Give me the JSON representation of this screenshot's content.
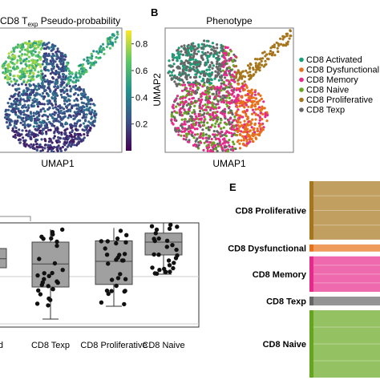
{
  "panel_a": {
    "title": "CD8 Tₑₓₚ Pseudo-probability",
    "title_prefix": "CD8 T",
    "title_sub": "exp",
    "title_suffix": " Pseudo-probability",
    "xlabel": "UMAP1",
    "colorbar_ticks": [
      "0.8",
      "0.6",
      "0.4",
      "0.2"
    ],
    "colormap": "viridis"
  },
  "panel_b": {
    "letter": "B",
    "title": "Phenotype",
    "xlabel": "UMAP1",
    "ylabel": "UMAP2",
    "legend": [
      {
        "label": "CD8 Activated",
        "color": "#1a9e77"
      },
      {
        "label": "CD8 Dysfunctional",
        "color": "#e8701a"
      },
      {
        "label": "CD8 Memory",
        "color": "#e7298a"
      },
      {
        "label": "CD8 Naive",
        "color": "#66a61e"
      },
      {
        "label": "CD8 Proliferative",
        "color": "#a6761d"
      },
      {
        "label": "CD8 Texp",
        "color": "#666666"
      }
    ]
  },
  "panel_d": {
    "categories": [
      "d",
      "CD8 Texp",
      "CD8 Proliferative",
      "CD8 Naive"
    ]
  },
  "panel_e": {
    "letter": "E",
    "labels": [
      "CD8 Proliferative",
      "CD8 Dysfunctional",
      "CD8 Memory",
      "CD8 Texp",
      "CD8 Naive"
    ],
    "colors": [
      "#a6761d",
      "#e8701a",
      "#e7298a",
      "#666666",
      "#66a61e"
    ]
  },
  "chart_data": [
    {
      "type": "scatter",
      "title": "CD8 Texp Pseudo-probability",
      "xlabel": "UMAP1",
      "ylabel": "",
      "colorbar": {
        "min": 0.0,
        "max": 0.9,
        "ticks": [
          0.2,
          0.4,
          0.6,
          0.8
        ]
      },
      "grid": false
    },
    {
      "type": "scatter",
      "title": "Phenotype",
      "xlabel": "UMAP1",
      "ylabel": "UMAP2",
      "series": [
        {
          "name": "CD8 Activated"
        },
        {
          "name": "CD8 Dysfunctional"
        },
        {
          "name": "CD8 Memory"
        },
        {
          "name": "CD8 Naive"
        },
        {
          "name": "CD8 Proliferative"
        },
        {
          "name": "CD8 Texp"
        }
      ],
      "legend": "right",
      "grid": false
    },
    {
      "type": "box",
      "categories": [
        "d",
        "CD8 Texp",
        "CD8 Proliferative",
        "CD8 Naive"
      ],
      "boxes": [
        {
          "q1": 0.35,
          "median": 0.42,
          "q3": 0.5,
          "whisker_low": 0.3,
          "whisker_high": 0.55
        },
        {
          "q1": 0.2,
          "median": 0.38,
          "q3": 0.55,
          "whisker_low": -0.05,
          "whisker_high": 0.65
        },
        {
          "q1": 0.22,
          "median": 0.4,
          "q3": 0.56,
          "whisker_low": 0.05,
          "whisker_high": 0.66
        },
        {
          "q1": 0.45,
          "median": 0.55,
          "q3": 0.62,
          "whisker_low": 0.3,
          "whisker_high": 0.7
        }
      ],
      "grid": true
    },
    {
      "type": "sankey",
      "nodes": [
        "CD8 Proliferative",
        "CD8 Dysfunctional",
        "CD8 Memory",
        "CD8 Texp",
        "CD8 Naive"
      ],
      "node_share": [
        0.33,
        0.04,
        0.2,
        0.05,
        0.38
      ]
    }
  ]
}
